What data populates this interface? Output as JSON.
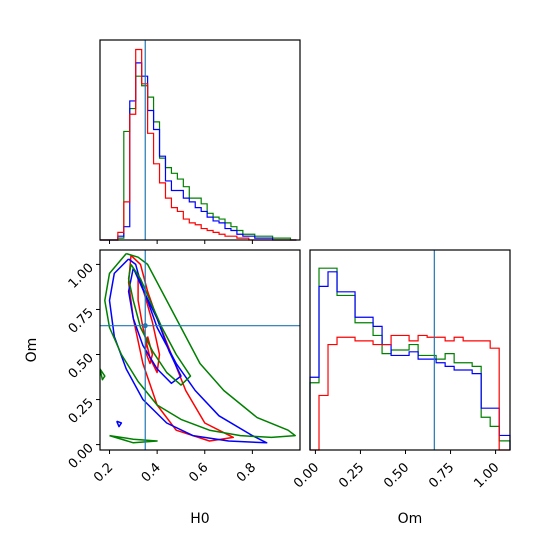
{
  "chart_data": {
    "type": "corner",
    "truth": {
      "H0": 0.35,
      "Om": 0.66
    },
    "series_colors": [
      "#ff0000",
      "#0000ff",
      "#008000"
    ],
    "truth_color": "#1f77b4",
    "panels": [
      {
        "type": "histogram",
        "name": "H0 marginal",
        "xlim": [
          0.16,
          1.0
        ],
        "bins": [
          0.16,
          0.185,
          0.21,
          0.235,
          0.26,
          0.285,
          0.31,
          0.335,
          0.36,
          0.385,
          0.41,
          0.435,
          0.46,
          0.485,
          0.51,
          0.535,
          0.56,
          0.585,
          0.61,
          0.635,
          0.66,
          0.685,
          0.71,
          0.735,
          0.76,
          0.785,
          0.81,
          0.835,
          0.86,
          0.885,
          0.91,
          0.935,
          0.96,
          0.985
        ],
        "ylim": [
          0,
          105
        ],
        "series": [
          {
            "color": "#ff0000",
            "values": [
              0,
              0,
              0,
              4,
              20,
              66,
              100,
              82,
              56,
              40,
              30,
              22,
              17,
              15,
              11,
              9,
              8,
              6,
              5,
              4,
              3,
              2,
              2,
              1,
              1,
              0,
              0,
              0,
              0,
              0,
              0,
              0,
              0
            ]
          },
          {
            "color": "#0000ff",
            "values": [
              0,
              0,
              0,
              2,
              7,
              73,
              93,
              86,
              68,
              58,
              44,
              31,
              26,
              26,
              22,
              20,
              17,
              15,
              12,
              10,
              9,
              6,
              5,
              3,
              2,
              2,
              1,
              1,
              1,
              0,
              0,
              0,
              0
            ]
          },
          {
            "color": "#008000",
            "values": [
              0,
              0,
              0,
              1,
              57,
              69,
              86,
              81,
              75,
              62,
              43,
              38,
              35,
              32,
              28,
              22,
              22,
              19,
              14,
              12,
              11,
              9,
              7,
              5,
              3,
              3,
              2,
              2,
              2,
              1,
              1,
              1,
              0
            ]
          }
        ]
      },
      {
        "type": "contour",
        "name": "H0 vs Om joint",
        "xlim": [
          0.16,
          1.0
        ],
        "ylim": [
          -0.03,
          1.08
        ],
        "series": [
          {
            "color": "#ff0000",
            "contours": [
              [
                [
                  0.29,
                  1.05
                ],
                [
                  0.33,
                  1.0
                ],
                [
                  0.36,
                  0.85
                ],
                [
                  0.4,
                  0.7
                ],
                [
                  0.46,
                  0.5
                ],
                [
                  0.52,
                  0.3
                ],
                [
                  0.6,
                  0.12
                ],
                [
                  0.72,
                  0.04
                ],
                [
                  0.62,
                  0.02
                ],
                [
                  0.48,
                  0.08
                ],
                [
                  0.4,
                  0.22
                ],
                [
                  0.34,
                  0.45
                ],
                [
                  0.3,
                  0.7
                ],
                [
                  0.28,
                  0.9
                ],
                [
                  0.29,
                  1.05
                ]
              ],
              [
                [
                  0.32,
                  0.95
                ],
                [
                  0.35,
                  0.82
                ],
                [
                  0.38,
                  0.68
                ],
                [
                  0.41,
                  0.5
                ],
                [
                  0.4,
                  0.4
                ],
                [
                  0.37,
                  0.48
                ],
                [
                  0.34,
                  0.65
                ],
                [
                  0.32,
                  0.8
                ],
                [
                  0.32,
                  0.95
                ]
              ],
              [
                [
                  0.36,
                  0.6
                ],
                [
                  0.38,
                  0.5
                ],
                [
                  0.37,
                  0.45
                ],
                [
                  0.35,
                  0.52
                ],
                [
                  0.36,
                  0.6
                ]
              ]
            ]
          },
          {
            "color": "#0000ff",
            "contours": [
              [
                [
                  0.28,
                  1.03
                ],
                [
                  0.31,
                  1.0
                ],
                [
                  0.33,
                  0.9
                ],
                [
                  0.36,
                  0.8
                ],
                [
                  0.4,
                  0.65
                ],
                [
                  0.48,
                  0.45
                ],
                [
                  0.56,
                  0.3
                ],
                [
                  0.66,
                  0.16
                ],
                [
                  0.8,
                  0.05
                ],
                [
                  0.86,
                  0.01
                ],
                [
                  0.7,
                  0.02
                ],
                [
                  0.55,
                  0.05
                ],
                [
                  0.44,
                  0.12
                ],
                [
                  0.34,
                  0.25
                ],
                [
                  0.27,
                  0.42
                ],
                [
                  0.22,
                  0.6
                ],
                [
                  0.2,
                  0.8
                ],
                [
                  0.22,
                  0.95
                ],
                [
                  0.28,
                  1.03
                ]
              ],
              [
                [
                  0.3,
                  0.98
                ],
                [
                  0.34,
                  0.86
                ],
                [
                  0.4,
                  0.7
                ],
                [
                  0.45,
                  0.52
                ],
                [
                  0.5,
                  0.38
                ],
                [
                  0.46,
                  0.34
                ],
                [
                  0.4,
                  0.42
                ],
                [
                  0.34,
                  0.55
                ],
                [
                  0.3,
                  0.7
                ],
                [
                  0.28,
                  0.85
                ],
                [
                  0.3,
                  0.98
                ]
              ],
              [
                [
                  0.23,
                  0.13
                ],
                [
                  0.24,
                  0.1
                ],
                [
                  0.25,
                  0.12
                ],
                [
                  0.23,
                  0.13
                ]
              ]
            ]
          },
          {
            "color": "#008000",
            "contours": [
              [
                [
                  0.27,
                  1.06
                ],
                [
                  0.32,
                  1.04
                ],
                [
                  0.36,
                  1.0
                ],
                [
                  0.42,
                  0.85
                ],
                [
                  0.5,
                  0.65
                ],
                [
                  0.58,
                  0.45
                ],
                [
                  0.68,
                  0.3
                ],
                [
                  0.82,
                  0.15
                ],
                [
                  0.95,
                  0.08
                ],
                [
                  0.98,
                  0.05
                ],
                [
                  0.88,
                  0.04
                ],
                [
                  0.75,
                  0.05
                ],
                [
                  0.62,
                  0.08
                ],
                [
                  0.5,
                  0.14
                ],
                [
                  0.4,
                  0.22
                ],
                [
                  0.32,
                  0.35
                ],
                [
                  0.25,
                  0.5
                ],
                [
                  0.2,
                  0.65
                ],
                [
                  0.18,
                  0.8
                ],
                [
                  0.2,
                  0.95
                ],
                [
                  0.27,
                  1.06
                ]
              ],
              [
                [
                  0.29,
                  1.0
                ],
                [
                  0.33,
                  0.92
                ],
                [
                  0.37,
                  0.8
                ],
                [
                  0.42,
                  0.65
                ],
                [
                  0.48,
                  0.5
                ],
                [
                  0.54,
                  0.38
                ],
                [
                  0.5,
                  0.33
                ],
                [
                  0.44,
                  0.4
                ],
                [
                  0.38,
                  0.52
                ],
                [
                  0.33,
                  0.65
                ],
                [
                  0.3,
                  0.8
                ],
                [
                  0.28,
                  0.92
                ],
                [
                  0.29,
                  1.0
                ]
              ],
              [
                [
                  0.16,
                  0.42
                ],
                [
                  0.18,
                  0.38
                ],
                [
                  0.17,
                  0.36
                ],
                [
                  0.16,
                  0.42
                ]
              ],
              [
                [
                  0.2,
                  0.05
                ],
                [
                  0.3,
                  0.03
                ],
                [
                  0.4,
                  0.02
                ],
                [
                  0.3,
                  0.01
                ],
                [
                  0.2,
                  0.05
                ]
              ]
            ]
          }
        ]
      },
      {
        "type": "histogram",
        "name": "Om marginal",
        "xlim": [
          -0.03,
          1.08
        ],
        "bins": [
          -0.03,
          0.02,
          0.07,
          0.12,
          0.17,
          0.22,
          0.27,
          0.32,
          0.37,
          0.42,
          0.47,
          0.52,
          0.57,
          0.62,
          0.67,
          0.72,
          0.77,
          0.82,
          0.87,
          0.92,
          0.97,
          1.02,
          1.08
        ],
        "ylim": [
          0,
          110
        ],
        "series": [
          {
            "color": "#ff0000",
            "values": [
              0,
              30,
              58,
              62,
              62,
              60,
              60,
              58,
              58,
              63,
              63,
              60,
              63,
              62,
              62,
              60,
              62,
              60,
              60,
              60,
              56,
              0
            ]
          },
          {
            "color": "#0000ff",
            "values": [
              40,
              90,
              98,
              87,
              87,
              73,
              73,
              68,
              58,
              52,
              52,
              54,
              50,
              50,
              48,
              46,
              44,
              44,
              42,
              23,
              23,
              8
            ]
          },
          {
            "color": "#008000",
            "values": [
              37,
              100,
              100,
              85,
              85,
              70,
              70,
              63,
              53,
              55,
              55,
              58,
              52,
              52,
              50,
              53,
              48,
              48,
              46,
              18,
              13,
              5
            ]
          }
        ]
      }
    ],
    "axes": {
      "x_label_H0": "H0",
      "x_label_Om": "Om",
      "y_label_Om": "Om",
      "H0_ticks": [
        {
          "value": 0.2,
          "label": "0.2"
        },
        {
          "value": 0.4,
          "label": "0.4"
        },
        {
          "value": 0.6,
          "label": "0.6"
        },
        {
          "value": 0.8,
          "label": "0.8"
        }
      ],
      "Om_ticks": [
        {
          "value": 0.0,
          "label": "0.00"
        },
        {
          "value": 0.25,
          "label": "0.25"
        },
        {
          "value": 0.5,
          "label": "0.50"
        },
        {
          "value": 0.75,
          "label": "0.75"
        },
        {
          "value": 1.0,
          "label": "1.00"
        }
      ]
    }
  }
}
